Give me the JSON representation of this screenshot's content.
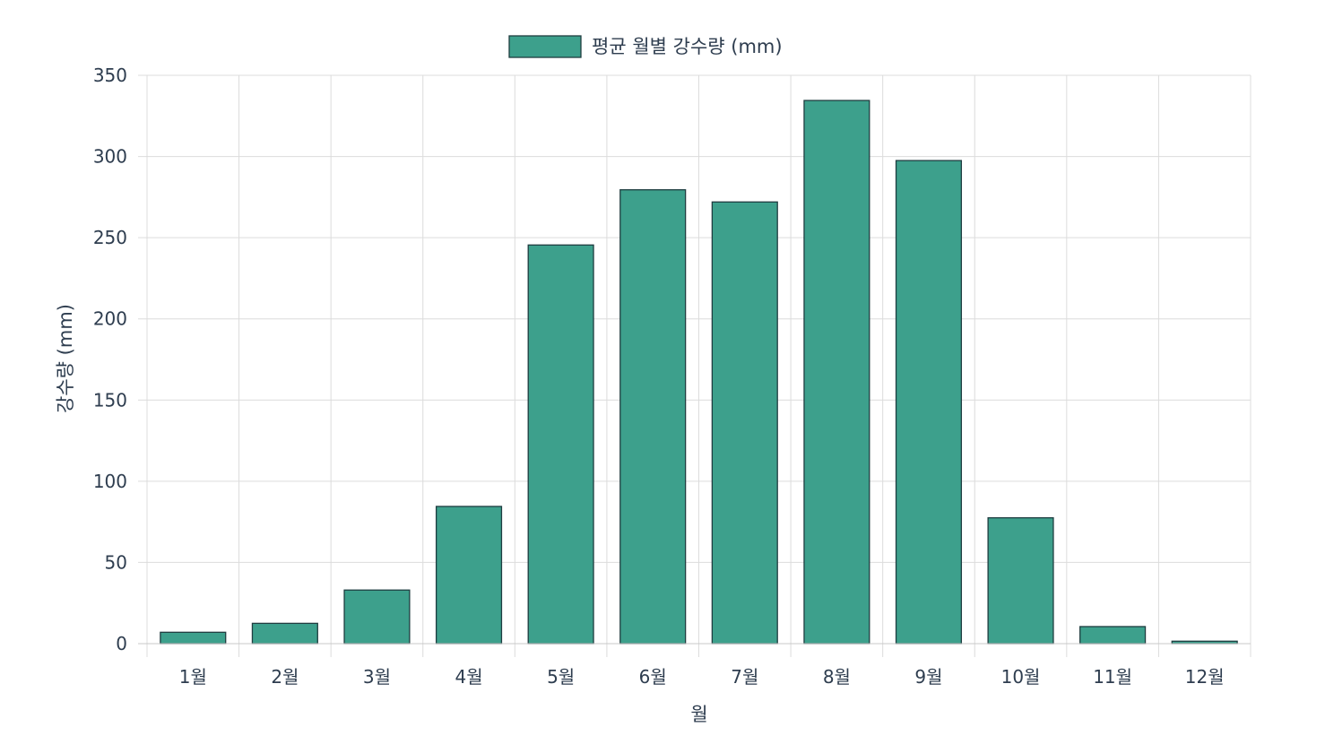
{
  "chart_data": {
    "type": "bar",
    "title": "",
    "xlabel": "월",
    "ylabel": "강수량 (mm)",
    "categories": [
      "1월",
      "2월",
      "3월",
      "4월",
      "5월",
      "6월",
      "7월",
      "8월",
      "9월",
      "10월",
      "11월",
      "12월"
    ],
    "series": [
      {
        "name": "평균 월별 강수량 (mm)",
        "values": [
          7,
          12.5,
          33,
          84.5,
          245.5,
          279.5,
          272,
          334.5,
          297.5,
          77.5,
          10.5,
          1.5
        ]
      }
    ],
    "ylim": [
      0,
      350
    ],
    "yticks": [
      0,
      50,
      100,
      150,
      200,
      250,
      300,
      350
    ],
    "grid": true,
    "legend_position": "top-center",
    "colors": {
      "bar_fill": "#3da08c",
      "bar_stroke": "#1f3d40",
      "grid": "#dcdcdc",
      "text": "#2e3d4f"
    }
  }
}
